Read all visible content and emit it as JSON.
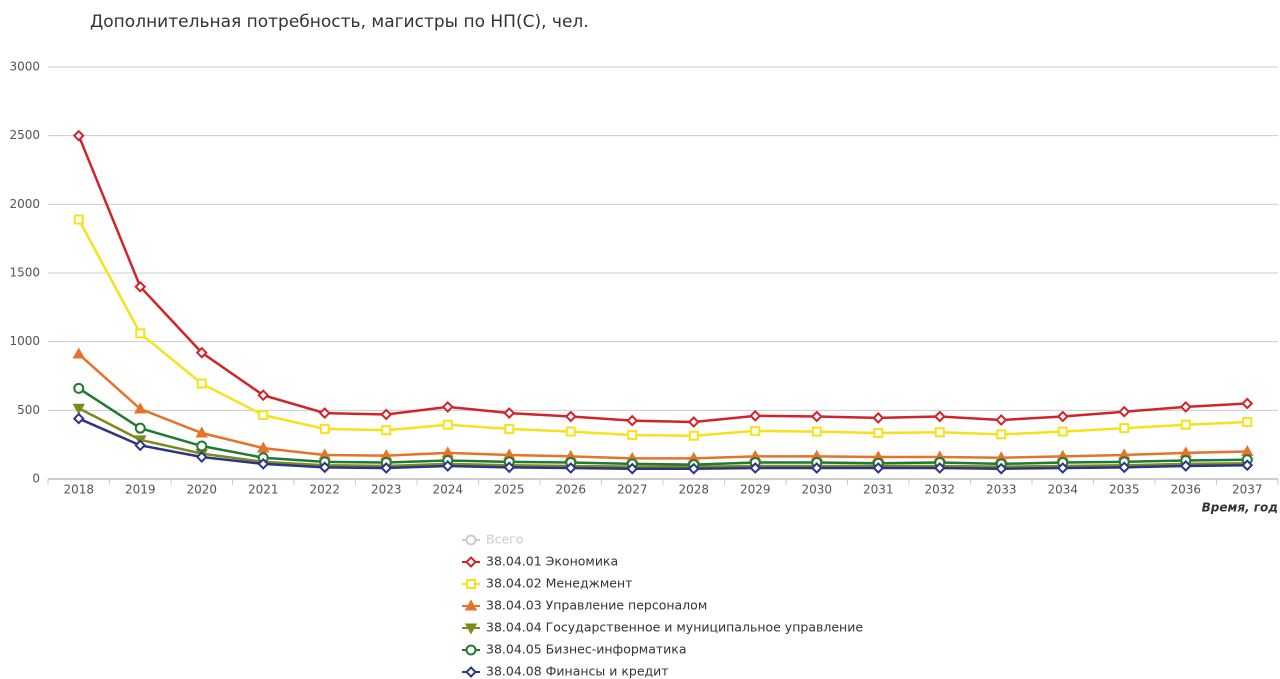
{
  "chart_data": {
    "type": "line",
    "title": "Дополнительная потребность, магистры по НП(С), чел.",
    "x_label": "Время, год",
    "categories": [
      "2018",
      "2019",
      "2020",
      "2021",
      "2022",
      "2023",
      "2024",
      "2025",
      "2026",
      "2027",
      "2028",
      "2029",
      "2030",
      "2031",
      "2032",
      "2033",
      "2034",
      "2035",
      "2036",
      "2037"
    ],
    "ylim": [
      0,
      3000
    ],
    "yticks": [
      0,
      500,
      1000,
      1500,
      2000,
      2500,
      3000
    ],
    "grid": true,
    "series": [
      {
        "name": "Всего",
        "color": "#cccccc",
        "marker": "circle",
        "hidden": true,
        "values": [
          null,
          null,
          null,
          null,
          null,
          null,
          null,
          null,
          null,
          null,
          null,
          null,
          null,
          null,
          null,
          null,
          null,
          null,
          null,
          null
        ]
      },
      {
        "name": "38.04.01 Экономика",
        "color": "#d2232a",
        "marker": "diamond",
        "values": [
          2500,
          1400,
          920,
          610,
          480,
          470,
          525,
          480,
          455,
          425,
          415,
          460,
          455,
          445,
          455,
          430,
          455,
          490,
          525,
          550
        ]
      },
      {
        "name": "38.04.02 Менеджмент",
        "color": "#f5e21a",
        "marker": "square",
        "values": [
          1890,
          1060,
          695,
          465,
          365,
          355,
          395,
          365,
          345,
          320,
          315,
          350,
          345,
          335,
          340,
          325,
          345,
          370,
          395,
          415
        ]
      },
      {
        "name": "38.04.03 Управление персоналом",
        "color": "#e8722a",
        "marker": "triangle",
        "values": [
          910,
          510,
          335,
          225,
          175,
          170,
          190,
          175,
          165,
          150,
          150,
          165,
          165,
          160,
          160,
          155,
          165,
          175,
          190,
          200
        ]
      },
      {
        "name": "38.04.04 Государственное и муниципальное управление",
        "color": "#7f8a1e",
        "marker": "triangle-down",
        "values": [
          515,
          285,
          185,
          125,
          100,
          95,
          110,
          100,
          95,
          90,
          90,
          95,
          95,
          95,
          95,
          90,
          95,
          100,
          110,
          115
        ]
      },
      {
        "name": "38.04.05 Бизнес-информатика",
        "color": "#1f7a32",
        "marker": "circle",
        "values": [
          660,
          370,
          240,
          155,
          125,
          120,
          135,
          125,
          120,
          110,
          105,
          120,
          120,
          115,
          120,
          110,
          120,
          125,
          135,
          140
        ]
      },
      {
        "name": "38.04.08 Финансы и кредит",
        "color": "#2c3587",
        "marker": "diamond",
        "values": [
          440,
          245,
          160,
          110,
          85,
          80,
          95,
          85,
          80,
          75,
          75,
          80,
          80,
          80,
          80,
          75,
          80,
          85,
          95,
          100
        ]
      }
    ]
  }
}
